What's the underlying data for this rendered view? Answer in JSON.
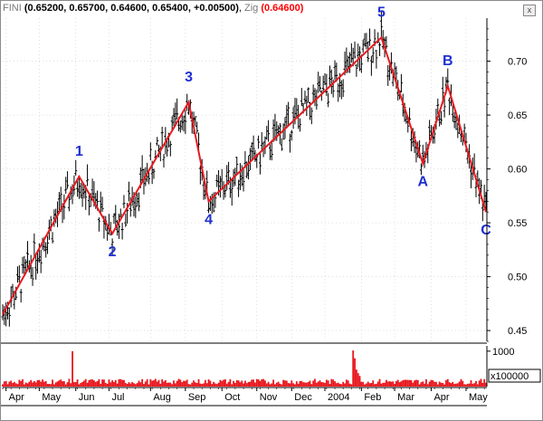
{
  "header": {
    "symbol": "FINI",
    "ohlc": "(0.65200, 0.65700, 0.64600, 0.65400, +0.00500)",
    "zig_label": "Zig",
    "zig_value": "(0.64600)",
    "close_glyph": "x"
  },
  "colors": {
    "price_bar": "#000000",
    "zigzag": "#e8191f",
    "volume": "#e8191f",
    "wave_label": "#1f2fd0",
    "grid": "#cccccc"
  },
  "chart_data": {
    "type": "line",
    "title": "",
    "series": [
      {
        "type": "ohlc",
        "x": [
          "Apr",
          "May",
          "Jun",
          "Jul",
          "Aug",
          "Sep",
          "Oct",
          "Nov",
          "Dec",
          "2004",
          "Feb",
          "Mar",
          "Apr",
          "May"
        ],
        "values": [
          0.48,
          0.53,
          0.59,
          0.55,
          0.61,
          0.65,
          0.6,
          0.62,
          0.64,
          0.67,
          0.72,
          0.66,
          0.67,
          0.6
        ]
      },
      {
        "name": "Zig",
        "points": [
          {
            "i": 0,
            "y": 0.465
          },
          {
            "i": 46,
            "y": 0.593
          },
          {
            "i": 66,
            "y": 0.54
          },
          {
            "i": 112,
            "y": 0.662
          },
          {
            "i": 124,
            "y": 0.57
          },
          {
            "i": 228,
            "y": 0.722
          },
          {
            "i": 253,
            "y": 0.605
          },
          {
            "i": 268,
            "y": 0.677
          },
          {
            "i": 291,
            "y": 0.56
          }
        ]
      }
    ],
    "wave_labels": [
      {
        "text": "1",
        "i": 46,
        "y": 0.593,
        "pos": "above"
      },
      {
        "text": "2",
        "i": 66,
        "y": 0.54,
        "pos": "below"
      },
      {
        "text": "3",
        "i": 112,
        "y": 0.662,
        "pos": "above"
      },
      {
        "text": "4",
        "i": 124,
        "y": 0.57,
        "pos": "below"
      },
      {
        "text": "5",
        "i": 228,
        "y": 0.722,
        "pos": "above"
      },
      {
        "text": "A",
        "i": 253,
        "y": 0.605,
        "pos": "below"
      },
      {
        "text": "B",
        "i": 268,
        "y": 0.677,
        "pos": "above"
      },
      {
        "text": "C",
        "i": 291,
        "y": 0.56,
        "pos": "below"
      }
    ],
    "y_ticks": [
      "0.70",
      "0.65",
      "0.60",
      "0.55",
      "0.50",
      "0.45"
    ],
    "y_tick_values": [
      0.7,
      0.65,
      0.6,
      0.55,
      0.5,
      0.45
    ],
    "ylim": [
      0.44,
      0.74
    ],
    "x_ticks": [
      "Apr",
      "May",
      "Jun",
      "Jul",
      "Aug",
      "Sep",
      "Oct",
      "Nov",
      "Dec",
      "2004",
      "Feb",
      "Mar",
      "Apr",
      "May"
    ],
    "x_tick_index": [
      2,
      22,
      44,
      64,
      89,
      110,
      132,
      153,
      174,
      194,
      216,
      236,
      258,
      279
    ],
    "bar_count": 292,
    "volume": {
      "y_tick": "1000",
      "unit": "x100000",
      "ylim": [
        0,
        1150
      ],
      "spikes": [
        {
          "i": 42,
          "v": 1000
        },
        {
          "i": 211,
          "v": 1020
        },
        {
          "i": 212,
          "v": 800
        },
        {
          "i": 213,
          "v": 480
        },
        {
          "i": 214,
          "v": 380
        },
        {
          "i": 215,
          "v": 300
        }
      ]
    }
  }
}
